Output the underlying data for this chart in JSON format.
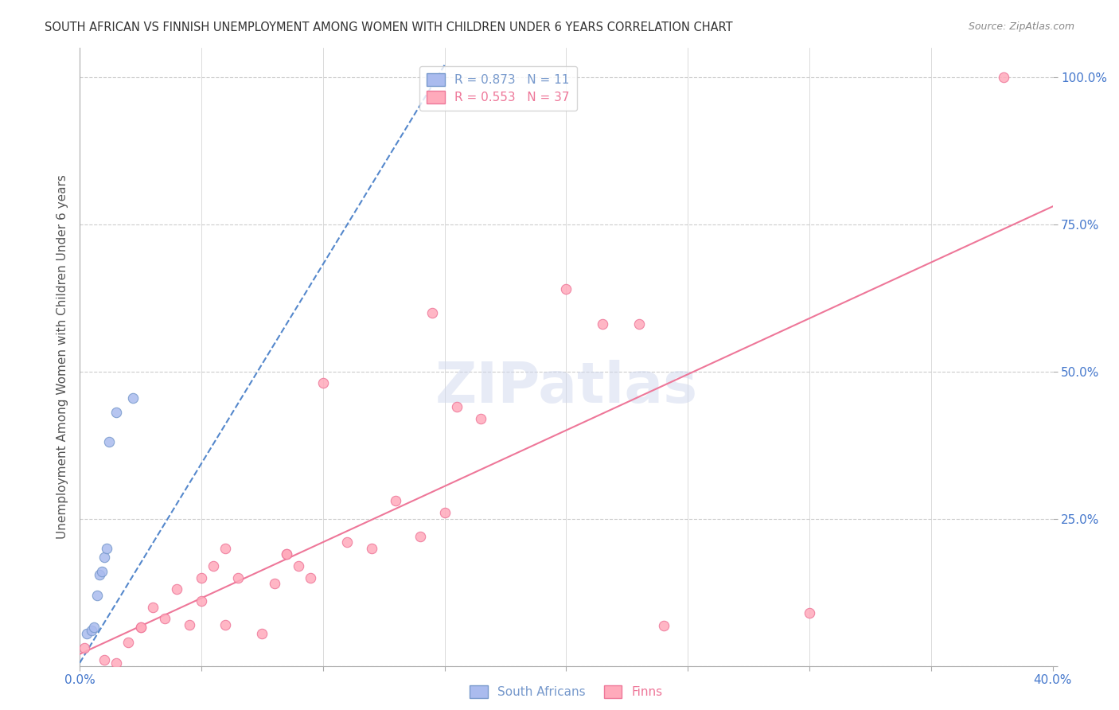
{
  "title": "SOUTH AFRICAN VS FINNISH UNEMPLOYMENT AMONG WOMEN WITH CHILDREN UNDER 6 YEARS CORRELATION CHART",
  "source": "Source: ZipAtlas.com",
  "xlabel": "",
  "ylabel": "Unemployment Among Women with Children Under 6 years",
  "xlim": [
    0.0,
    0.4
  ],
  "ylim": [
    0.0,
    1.05
  ],
  "xticks": [
    0.0,
    0.05,
    0.1,
    0.15,
    0.2,
    0.25,
    0.3,
    0.35,
    0.4
  ],
  "xticklabels": [
    "0.0%",
    "",
    "",
    "",
    "",
    "",
    "",
    "",
    "40.0%"
  ],
  "ytick_positions": [
    0.0,
    0.25,
    0.5,
    0.75,
    1.0
  ],
  "ytick_labels": [
    "",
    "25.0%",
    "50.0%",
    "75.0%",
    "100.0%"
  ],
  "background_color": "#ffffff",
  "grid_color": "#cccccc",
  "title_color": "#333333",
  "axis_color": "#aaaaaa",
  "label_color": "#555555",
  "tick_color": "#4477cc",
  "watermark": "ZIPatlas",
  "south_africans": {
    "x": [
      0.003,
      0.005,
      0.006,
      0.007,
      0.008,
      0.009,
      0.01,
      0.011,
      0.012,
      0.015,
      0.022
    ],
    "y": [
      0.055,
      0.06,
      0.065,
      0.12,
      0.155,
      0.16,
      0.185,
      0.2,
      0.38,
      0.43,
      0.455
    ],
    "color": "#aabbee",
    "edge_color": "#7799cc",
    "marker_size": 80,
    "label": "South Africans",
    "R": 0.873,
    "N": 11
  },
  "finns": {
    "x": [
      0.002,
      0.01,
      0.015,
      0.02,
      0.025,
      0.025,
      0.03,
      0.035,
      0.04,
      0.045,
      0.05,
      0.05,
      0.055,
      0.06,
      0.06,
      0.065,
      0.075,
      0.08,
      0.085,
      0.085,
      0.09,
      0.095,
      0.1,
      0.11,
      0.12,
      0.13,
      0.14,
      0.145,
      0.15,
      0.155,
      0.165,
      0.2,
      0.215,
      0.23,
      0.24,
      0.3,
      0.38
    ],
    "y": [
      0.03,
      0.01,
      0.005,
      0.04,
      0.065,
      0.065,
      0.1,
      0.08,
      0.13,
      0.07,
      0.11,
      0.15,
      0.17,
      0.2,
      0.07,
      0.15,
      0.055,
      0.14,
      0.19,
      0.19,
      0.17,
      0.15,
      0.48,
      0.21,
      0.2,
      0.28,
      0.22,
      0.6,
      0.26,
      0.44,
      0.42,
      0.64,
      0.58,
      0.58,
      0.068,
      0.09,
      1.0
    ],
    "color": "#ffaabb",
    "edge_color": "#ee7799",
    "marker_size": 80,
    "label": "Finns",
    "R": 0.553,
    "N": 37
  },
  "blue_line": {
    "x": [
      0.0,
      0.15
    ],
    "y": [
      0.005,
      1.02
    ],
    "color": "#5588cc",
    "linestyle": "dashed",
    "linewidth": 1.5
  },
  "pink_line": {
    "x": [
      0.0,
      0.4
    ],
    "y": [
      0.02,
      0.78
    ],
    "color": "#ee7799",
    "linestyle": "solid",
    "linewidth": 1.5
  }
}
